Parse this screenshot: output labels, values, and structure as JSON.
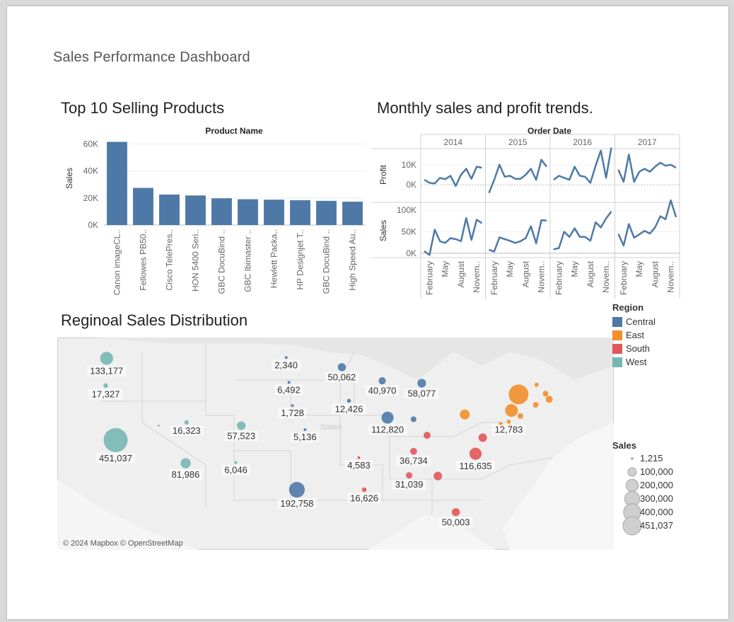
{
  "dashboard": {
    "title": "Sales Performance Dashboard"
  },
  "top_products": {
    "title": "Top 10 Selling Products",
    "header": "Product Name",
    "ylabel": "Sales",
    "color": "#4e79a7"
  },
  "trends": {
    "title": "Monthly sales and profit trends.",
    "header": "Order Date",
    "row_labels": [
      "Profit",
      "Sales"
    ],
    "color": "#4e79a7"
  },
  "map": {
    "title": "Reginoal Sales Distribution",
    "attribution": "© 2024 Mapbox © OpenStreetMap",
    "faint_label": "States"
  },
  "legend": {
    "region_title": "Region",
    "regions": [
      {
        "name": "Central",
        "color": "#4e79a7"
      },
      {
        "name": "East",
        "color": "#f28e2b"
      },
      {
        "name": "South",
        "color": "#e15759"
      },
      {
        "name": "West",
        "color": "#76b7b2"
      }
    ],
    "size_title": "Sales",
    "sizes": [
      "1,215",
      "100,000",
      "200,000",
      "300,000",
      "400,000",
      "451,037"
    ]
  },
  "chart_data": [
    {
      "type": "bar",
      "title": "Top 10 Selling Products",
      "xlabel": "Product Name",
      "ylabel": "Sales",
      "categories": [
        "Canon imageCL..",
        "Fellowes PB50..",
        "Cisco TelePres..",
        "HON 5400 Seri..",
        "GBC DocuBind ..",
        "GBC Ibimaster ..",
        "Hewlett Packa..",
        "HP Designjet T..",
        "GBC DocuBind ..",
        "High Speed Au.."
      ],
      "values": [
        61600,
        27500,
        22600,
        21900,
        19800,
        19100,
        18800,
        18400,
        17900,
        17300
      ],
      "ylim": [
        0,
        65000
      ],
      "yticks": [
        0,
        20000,
        40000,
        60000
      ],
      "ytick_labels": [
        "0K",
        "20K",
        "40K",
        "60K"
      ]
    },
    {
      "type": "line",
      "title": "Monthly sales and profit trends.",
      "xlabel": "Order Date",
      "years": [
        "2014",
        "2015",
        "2016",
        "2017"
      ],
      "month_ticks": [
        "February",
        "May",
        "August",
        "Novem.."
      ],
      "month_tick_positions": [
        2,
        5,
        8,
        11
      ],
      "series": [
        {
          "name": "Profit",
          "ylim": [
            -8000,
            18000
          ],
          "yticks": [
            0,
            10000
          ],
          "ytick_labels": [
            "0K",
            "10K"
          ],
          "values": {
            "2014": [
              2500,
              1000,
              700,
              3500,
              2800,
              4500,
              -600,
              5000,
              8000,
              3000,
              9000,
              8500
            ],
            "2015": [
              -4000,
              2500,
              10000,
              4000,
              4500,
              3000,
              3000,
              5000,
              8000,
              2500,
              12500,
              9000
            ],
            "2016": [
              2500,
              4500,
              3500,
              2500,
              9000,
              4500,
              4000,
              1000,
              9500,
              17000,
              3500,
              18500
            ],
            "2017": [
              7500,
              1500,
              15000,
              1500,
              6500,
              8000,
              6500,
              9000,
              11000,
              9500,
              10000,
              8500
            ]
          }
        },
        {
          "name": "Sales",
          "ylim": [
            -10000,
            115000
          ],
          "yticks": [
            0,
            50000,
            100000
          ],
          "ytick_labels": [
            "0K",
            "50K",
            "100K"
          ],
          "values": {
            "2014": [
              5000,
              -4000,
              55000,
              28000,
              24000,
              35000,
              33000,
              28000,
              82000,
              31000,
              78000,
              70000
            ],
            "2015": [
              8000,
              4000,
              37000,
              33000,
              29000,
              24000,
              28000,
              35000,
              63000,
              23000,
              77000,
              76000
            ],
            "2016": [
              9000,
              12000,
              50000,
              38000,
              58000,
              38000,
              38000,
              29000,
              72000,
              60000,
              81000,
              97000
            ],
            "2017": [
              45000,
              18000,
              68000,
              36000,
              44000,
              52000,
              46000,
              60000,
              86000,
              79000,
              123000,
              84000
            ]
          }
        }
      ]
    },
    {
      "type": "scatter",
      "title": "Reginoal Sales Distribution",
      "size_measure": "Sales",
      "color_measure": "Region",
      "points": [
        {
          "value": 133177,
          "label": "133,177",
          "region": "West",
          "lon": -120.5,
          "lat": 47.4
        },
        {
          "value": 17327,
          "label": "17,327",
          "region": "West",
          "lon": -120.6,
          "lat": 44.0
        },
        {
          "value": 451037,
          "label": "451,037",
          "region": "West",
          "lon": -119.5,
          "lat": 37.2
        },
        {
          "value": 16323,
          "label": "16,323",
          "region": "West",
          "lon": -111.6,
          "lat": 39.4
        },
        {
          "value": 57523,
          "label": "57,523",
          "region": "West",
          "lon": -105.5,
          "lat": 39.0
        },
        {
          "value": 81986,
          "label": "81,986",
          "region": "West",
          "lon": -111.7,
          "lat": 34.3
        },
        {
          "value": 6046,
          "label": "6,046",
          "region": "West",
          "lon": -106.1,
          "lat": 34.4
        },
        {
          "value": 2340,
          "label": "2,340",
          "region": "Central",
          "lon": -100.5,
          "lat": 47.5
        },
        {
          "value": 50062,
          "label": "50,062",
          "region": "Central",
          "lon": -94.3,
          "lat": 46.3
        },
        {
          "value": 40970,
          "label": "40,970",
          "region": "Central",
          "lon": -89.8,
          "lat": 44.6
        },
        {
          "value": 6492,
          "label": "6,492",
          "region": "Central",
          "lon": -100.2,
          "lat": 44.4
        },
        {
          "value": 12426,
          "label": "12,426",
          "region": "Central",
          "lon": -93.5,
          "lat": 42.1
        },
        {
          "value": 58077,
          "label": "58,077",
          "region": "Central",
          "lon": -85.4,
          "lat": 44.3
        },
        {
          "value": 112820,
          "label": "112,820",
          "region": "Central",
          "lon": -89.2,
          "lat": 40.0
        },
        {
          "value": 1728,
          "label": "1,728",
          "region": "Central",
          "lon": -99.8,
          "lat": 41.5
        },
        {
          "value": 5136,
          "label": "5,136",
          "region": "Central",
          "lon": -98.4,
          "lat": 38.5
        },
        {
          "value": 192758,
          "label": "192,758",
          "region": "Central",
          "lon": -99.3,
          "lat": 31.0
        },
        {
          "value": 4583,
          "label": "4,583",
          "region": "South",
          "lon": -92.4,
          "lat": 35.0
        },
        {
          "value": 36734,
          "label": "36,734",
          "region": "South",
          "lon": -86.3,
          "lat": 35.8
        },
        {
          "value": 116635,
          "label": "116,635",
          "region": "South",
          "lon": -79.4,
          "lat": 35.5
        },
        {
          "value": 31039,
          "label": "31,039",
          "region": "South",
          "lon": -86.8,
          "lat": 32.8
        },
        {
          "value": 16626,
          "label": "16,626",
          "region": "South",
          "lon": -91.8,
          "lat": 31.0
        },
        {
          "value": 50003,
          "label": "50,003",
          "region": "South",
          "lon": -81.6,
          "lat": 28.2
        },
        {
          "value": 12783,
          "label": "12,783",
          "region": "East",
          "lon": -75.7,
          "lat": 39.5
        }
      ]
    }
  ]
}
